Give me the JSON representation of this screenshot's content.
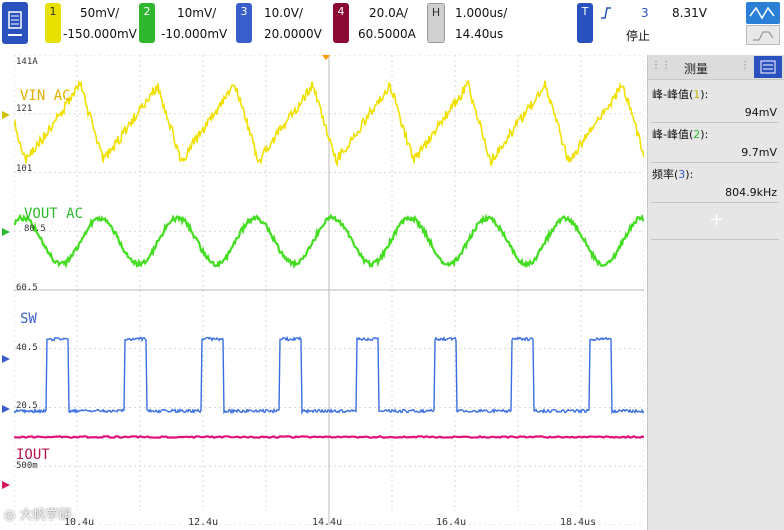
{
  "channels": [
    {
      "num": "1",
      "scale": "50mV/",
      "offset": "-150.000mV",
      "color": "#e8e000"
    },
    {
      "num": "2",
      "scale": "10mV/",
      "offset": "-10.000mV",
      "color": "#2db82d"
    },
    {
      "num": "3",
      "scale": "10.0V/",
      "offset": "20.0000V",
      "color": "#3a5fcd"
    },
    {
      "num": "4",
      "scale": "20.0A/",
      "offset": "60.5000A",
      "color": "#d4145a"
    }
  ],
  "horizontal": {
    "label": "H",
    "scale": "1.000us/",
    "position": "14.40us"
  },
  "trigger": {
    "label": "T",
    "source": "3",
    "level": "8.31V",
    "status": "停止"
  },
  "traces": {
    "vin": {
      "name": "VIN AC",
      "color": "#f0e000"
    },
    "vout": {
      "name": "VOUT AC",
      "color": "#44dd22"
    },
    "sw": {
      "name": "SW",
      "color": "#3a6fe0"
    },
    "iout": {
      "name": "IOUT",
      "color": "#e0137a"
    }
  },
  "grid_labels": {
    "vin_top": "141A",
    "vin_mid": "121",
    "vin_low": "101",
    "vout_mid": "80.5",
    "vout_low": "60.5",
    "sw_high": "40.5",
    "sw_low": "20.5",
    "iout": "500m"
  },
  "time_axis": [
    "10.4u",
    "12.4u",
    "14.4u",
    "16.4u",
    "18.4us"
  ],
  "measure": {
    "title": "测量",
    "items": [
      {
        "label": "峰-峰值",
        "ch": "1",
        "value": "94mV"
      },
      {
        "label": "峰-峰值",
        "ch": "2",
        "value": "9.7mV"
      },
      {
        "label": "频率",
        "ch": "3",
        "value": "804.9kHz"
      }
    ],
    "add": "+"
  },
  "watermark": "大帆学研"
}
